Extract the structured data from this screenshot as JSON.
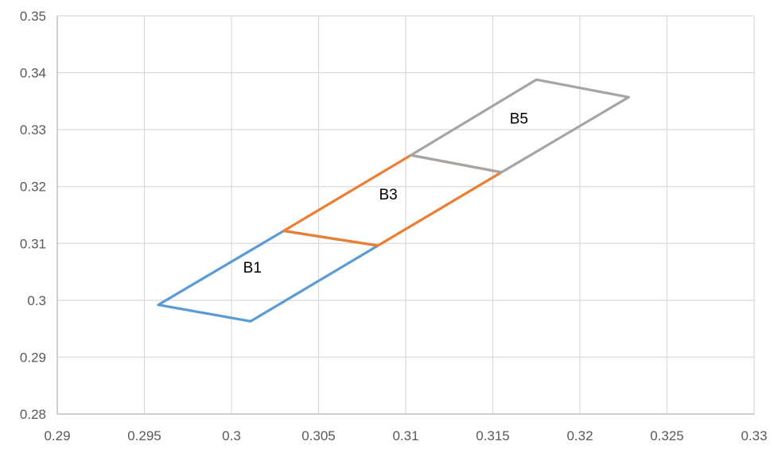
{
  "chart_data": {
    "type": "line",
    "title": "",
    "xlabel": "",
    "ylabel": "",
    "xlim": [
      0.29,
      0.33
    ],
    "ylim": [
      0.28,
      0.35
    ],
    "grid": true,
    "x_ticks": [
      "0.29",
      "0.295",
      "0.3",
      "0.305",
      "0.31",
      "0.315",
      "0.32",
      "0.325",
      "0.33"
    ],
    "y_ticks": [
      "0.28",
      "0.29",
      "0.3",
      "0.31",
      "0.32",
      "0.33",
      "0.34",
      "0.35"
    ],
    "x_tick_values": [
      0.29,
      0.295,
      0.3,
      0.305,
      0.31,
      0.315,
      0.32,
      0.325,
      0.33
    ],
    "y_tick_values": [
      0.28,
      0.29,
      0.3,
      0.31,
      0.32,
      0.33,
      0.34,
      0.35
    ],
    "series": [
      {
        "label": "B1",
        "color": "#5b9bd5",
        "points": [
          [
            0.2958,
            0.2992
          ],
          [
            0.3011,
            0.2963
          ],
          [
            0.3084,
            0.3096
          ],
          [
            0.303,
            0.3122
          ],
          [
            0.2958,
            0.2992
          ]
        ],
        "label_pos": [
          0.3012,
          0.3049
        ]
      },
      {
        "label": "B3",
        "color": "#ed7d31",
        "points": [
          [
            0.303,
            0.3122
          ],
          [
            0.3084,
            0.3096
          ],
          [
            0.3155,
            0.3225
          ],
          [
            0.3103,
            0.3255
          ],
          [
            0.303,
            0.3122
          ]
        ],
        "label_pos": [
          0.309,
          0.3177
        ]
      },
      {
        "label": "B5",
        "color": "#a5a5a5",
        "points": [
          [
            0.3103,
            0.3255
          ],
          [
            0.3155,
            0.3225
          ],
          [
            0.3228,
            0.3357
          ],
          [
            0.3175,
            0.3388
          ],
          [
            0.3103,
            0.3255
          ]
        ],
        "label_pos": [
          0.3165,
          0.3311
        ]
      }
    ]
  }
}
